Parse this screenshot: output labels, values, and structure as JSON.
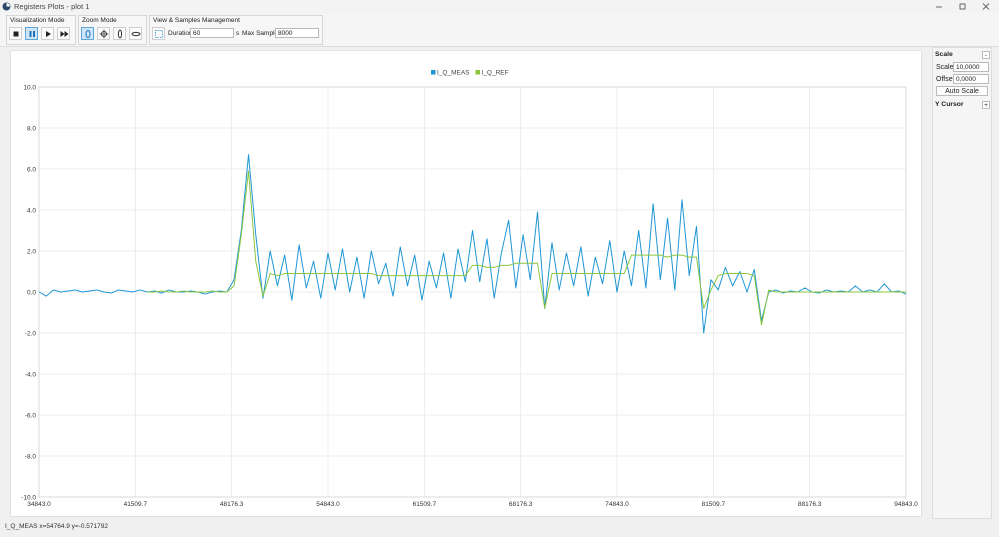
{
  "window": {
    "title": "Registers Plots - plot 1"
  },
  "toolbar": {
    "visualization_mode": {
      "label": "Visualization Mode"
    },
    "zoom_mode": {
      "label": "Zoom Mode"
    },
    "view_samples": {
      "label": "View & Samples Management",
      "duration_label": "Duration",
      "duration_value": "60",
      "duration_unit": "s",
      "max_samples_label": "Max Samples",
      "max_samples_value": "8000"
    }
  },
  "side_panel": {
    "scale_header": "Scale",
    "scale_toggle": "-",
    "scale_label": "Scale",
    "scale_value": "10,0000",
    "offset_label": "Offset",
    "offset_value": "0,0000",
    "auto_scale": "Auto Scale",
    "y_cursor_header": "Y Cursor",
    "y_cursor_toggle": "+"
  },
  "status_bar": "I_Q_MEAS x=54764.9 y=-0.571792",
  "chart_data": {
    "type": "line",
    "grid": true,
    "legend": "top",
    "xlim": [
      34843,
      94843
    ],
    "ylim": [
      -10,
      10
    ],
    "xticks": [
      {
        "value": 34843,
        "label": "34843.0"
      },
      {
        "value": 41509.7,
        "label": "41509.7"
      },
      {
        "value": 48176.3,
        "label": "48176.3"
      },
      {
        "value": 54843,
        "label": "54843.0"
      },
      {
        "value": 61509.7,
        "label": "61509.7"
      },
      {
        "value": 68176.3,
        "label": "68176.3"
      },
      {
        "value": 74843,
        "label": "74843.0"
      },
      {
        "value": 81509.7,
        "label": "81509.7"
      },
      {
        "value": 88176.3,
        "label": "88176.3"
      },
      {
        "value": 94843,
        "label": "94843.0"
      }
    ],
    "yticks": [
      {
        "value": 10,
        "label": "10.0"
      },
      {
        "value": 8,
        "label": "8.0"
      },
      {
        "value": 6,
        "label": "6.0"
      },
      {
        "value": 4,
        "label": "4.0"
      },
      {
        "value": 2,
        "label": "2.0"
      },
      {
        "value": 0,
        "label": "0.0"
      },
      {
        "value": -2,
        "label": "-2.0"
      },
      {
        "value": -4,
        "label": "-4.0"
      },
      {
        "value": -6,
        "label": "-6.0"
      },
      {
        "value": -8,
        "label": "-8.0"
      },
      {
        "value": -10,
        "label": "-10.0"
      }
    ],
    "x": [
      34843,
      35343,
      35843,
      36343,
      36843,
      37343,
      37843,
      38343,
      38843,
      39343,
      39843,
      40343,
      40843,
      41343,
      41843,
      42343,
      42843,
      43343,
      43843,
      44343,
      44843,
      45343,
      45843,
      46343,
      46843,
      47343,
      47843,
      48343,
      48843,
      49343,
      49843,
      50343,
      50843,
      51343,
      51843,
      52343,
      52843,
      53343,
      53843,
      54343,
      54843,
      55343,
      55843,
      56343,
      56843,
      57343,
      57843,
      58343,
      58843,
      59343,
      59843,
      60343,
      60843,
      61343,
      61843,
      62343,
      62843,
      63343,
      63843,
      64343,
      64843,
      65343,
      65843,
      66343,
      66843,
      67343,
      67843,
      68343,
      68843,
      69343,
      69843,
      70343,
      70843,
      71343,
      71843,
      72343,
      72843,
      73343,
      73843,
      74343,
      74843,
      75343,
      75843,
      76343,
      76843,
      77343,
      77843,
      78343,
      78843,
      79343,
      79843,
      80343,
      80843,
      81343,
      81843,
      82343,
      82843,
      83343,
      83843,
      84343,
      84843,
      85343,
      85843,
      86343,
      86843,
      87343,
      87843,
      88343,
      88843,
      89343,
      89843,
      90343,
      90843,
      91343,
      91843,
      92343,
      92843,
      93343,
      93843,
      94343,
      94843
    ],
    "series": [
      {
        "name": "I_Q_MEAS",
        "color": "#1e96d6",
        "values": [
          0,
          -0.2,
          0.1,
          0,
          0.05,
          0.1,
          0,
          0.05,
          0.1,
          0,
          -0.05,
          0.1,
          0.05,
          0,
          0.1,
          0,
          0.05,
          -0.05,
          0.1,
          0,
          0,
          0.05,
          0,
          -0.1,
          0,
          0.05,
          0,
          0.6,
          3.0,
          6.7,
          2.8,
          -0.3,
          2.0,
          0.3,
          1.8,
          -0.4,
          2.3,
          0.2,
          1.5,
          -0.3,
          1.9,
          0.1,
          2.1,
          0,
          1.7,
          -0.3,
          2.0,
          0.4,
          1.4,
          -0.2,
          2.2,
          0.3,
          1.8,
          -0.4,
          1.5,
          0.2,
          1.9,
          -0.3,
          2.1,
          0.5,
          3.0,
          0.5,
          2.6,
          -0.3,
          1.9,
          3.5,
          0.2,
          2.8,
          0.6,
          3.9,
          -0.8,
          2.4,
          0.1,
          1.9,
          0.3,
          2.2,
          -0.2,
          1.7,
          0.4,
          2.5,
          0,
          2.0,
          0.3,
          3.0,
          0.2,
          4.3,
          0.6,
          3.6,
          0.1,
          4.5,
          0.8,
          3.2,
          -2.0,
          0.6,
          0.1,
          1.2,
          0.3,
          1.0,
          0,
          1.1,
          -1.4,
          0,
          0.1,
          -0.05,
          0.05,
          0,
          0.2,
          0,
          -0.05,
          0.1,
          0,
          0.05,
          0,
          0.3,
          0,
          0.1,
          0,
          0.4,
          0,
          0.05,
          -0.1
        ]
      },
      {
        "name": "I_Q_REF",
        "color": "#8cc63f",
        "values": [
          null,
          null,
          null,
          null,
          null,
          null,
          null,
          null,
          null,
          null,
          null,
          null,
          null,
          null,
          null,
          0,
          0,
          0.05,
          0,
          0,
          0.05,
          0,
          0,
          0,
          0.05,
          0,
          0,
          0.3,
          2.8,
          5.9,
          1.5,
          -0.2,
          0.9,
          0.8,
          0.9,
          0.9,
          0.9,
          0.9,
          0.9,
          0.9,
          0.9,
          0.9,
          0.9,
          0.9,
          0.9,
          0.9,
          0.9,
          0.8,
          0.8,
          0.8,
          0.8,
          0.8,
          0.8,
          0.8,
          0.8,
          0.8,
          0.8,
          0.8,
          0.8,
          0.8,
          1.3,
          1.3,
          1.2,
          1.2,
          1.3,
          1.3,
          1.4,
          1.4,
          1.4,
          1.4,
          -0.8,
          0.9,
          0.9,
          0.9,
          0.9,
          0.9,
          0.9,
          0.9,
          0.9,
          0.9,
          0.9,
          0.9,
          1.8,
          1.8,
          1.8,
          1.8,
          1.8,
          1.7,
          1.8,
          1.8,
          1.7,
          1.7,
          -0.8,
          0.1,
          0.8,
          0.9,
          0.9,
          0.9,
          0.9,
          0.8,
          -1.6,
          0.1,
          0,
          0,
          0,
          0,
          0,
          0,
          0,
          0,
          0,
          0,
          0,
          0,
          0,
          0,
          0,
          0,
          0,
          0,
          0
        ]
      }
    ]
  }
}
